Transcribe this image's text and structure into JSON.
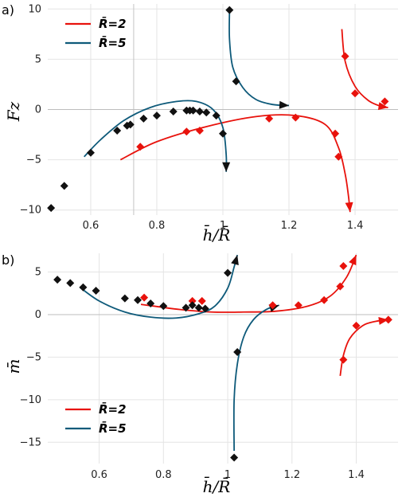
{
  "chart_data": [
    {
      "type": "scatter",
      "panel_label": "a)",
      "xlabel": "h̄/R̄",
      "ylabel": "Fz",
      "xlim": [
        0.47,
        1.53
      ],
      "ylim": [
        -10.5,
        10.5
      ],
      "x_ticks": [
        0.6,
        0.8,
        1.0,
        1.2,
        1.4
      ],
      "y_ticks": [
        -10,
        -5,
        0,
        5,
        10
      ],
      "grid": true,
      "legend_position": "top-left",
      "reference_line_x": 0.73,
      "series": [
        {
          "name": "R̄=2",
          "color": "#e8120c",
          "marker_points": [
            [
              0.75,
              -3.7
            ],
            [
              0.89,
              -2.2
            ],
            [
              0.93,
              -2.1
            ],
            [
              1.14,
              -0.9
            ],
            [
              1.22,
              -0.8
            ],
            [
              1.34,
              -2.4
            ],
            [
              1.35,
              -4.7
            ],
            [
              1.37,
              5.3
            ],
            [
              1.4,
              1.6
            ],
            [
              1.49,
              0.8
            ]
          ],
          "curves": [
            [
              [
                0.69,
                -5.0
              ],
              [
                0.8,
                -3.2
              ],
              [
                0.95,
                -1.7
              ],
              [
                1.1,
                -0.7
              ],
              [
                1.22,
                -0.6
              ],
              [
                1.31,
                -1.5
              ],
              [
                1.35,
                -3.8
              ],
              [
                1.37,
                -6.4
              ],
              [
                1.38,
                -8.6
              ],
              [
                1.385,
                -10.2
              ]
            ],
            [
              [
                1.36,
                8.0
              ],
              [
                1.37,
                4.8
              ],
              [
                1.4,
                2.3
              ],
              [
                1.44,
                0.9
              ],
              [
                1.48,
                0.3
              ],
              [
                1.5,
                0.2
              ]
            ]
          ]
        },
        {
          "name": "R̄=5",
          "color": "#0e5a7a",
          "marker_points": [
            [
              0.48,
              -9.8
            ],
            [
              0.52,
              -7.6
            ],
            [
              0.6,
              -4.3
            ],
            [
              0.68,
              -2.1
            ],
            [
              0.71,
              -1.6
            ],
            [
              0.72,
              -1.5
            ],
            [
              0.76,
              -0.9
            ],
            [
              0.8,
              -0.6
            ],
            [
              0.85,
              -0.2
            ],
            [
              0.89,
              -0.1
            ],
            [
              0.9,
              -0.1
            ],
            [
              0.91,
              -0.1
            ],
            [
              0.93,
              -0.2
            ],
            [
              0.95,
              -0.3
            ],
            [
              0.98,
              -0.6
            ],
            [
              1.0,
              -2.4
            ],
            [
              1.02,
              9.9
            ],
            [
              1.04,
              2.8
            ]
          ],
          "curves": [
            [
              [
                0.58,
                -4.7
              ],
              [
                0.63,
                -3.0
              ],
              [
                0.7,
                -1.1
              ],
              [
                0.78,
                0.2
              ],
              [
                0.86,
                0.8
              ],
              [
                0.92,
                0.8
              ],
              [
                0.97,
                0.0
              ],
              [
                1.0,
                -1.8
              ],
              [
                1.01,
                -4.5
              ],
              [
                1.01,
                -6.2
              ]
            ],
            [
              [
                1.02,
                9.8
              ],
              [
                1.02,
                7.0
              ],
              [
                1.03,
                4.2
              ],
              [
                1.06,
                2.2
              ],
              [
                1.1,
                1.0
              ],
              [
                1.15,
                0.5
              ],
              [
                1.2,
                0.4
              ]
            ]
          ]
        }
      ]
    },
    {
      "type": "scatter",
      "panel_label": "b)",
      "xlabel": "h̄/R̄",
      "ylabel": "m̄",
      "xlim": [
        0.44,
        1.53
      ],
      "ylim": [
        -17.5,
        7.2
      ],
      "x_ticks": [
        0.6,
        0.8,
        1.0,
        1.2,
        1.4
      ],
      "y_ticks": [
        -15,
        -10,
        -5,
        0,
        5
      ],
      "grid": true,
      "legend_position": "bottom-left",
      "series": [
        {
          "name": "R̄=2",
          "color": "#e8120c",
          "marker_points": [
            [
              0.74,
              2.0
            ],
            [
              0.89,
              1.6
            ],
            [
              0.92,
              1.6
            ],
            [
              1.14,
              1.1
            ],
            [
              1.22,
              1.1
            ],
            [
              1.3,
              1.7
            ],
            [
              1.35,
              3.3
            ],
            [
              1.36,
              5.7
            ],
            [
              1.36,
              -5.3
            ],
            [
              1.4,
              -1.3
            ],
            [
              1.5,
              -0.6
            ]
          ],
          "curves": [
            [
              [
                0.73,
                1.2
              ],
              [
                0.85,
                0.6
              ],
              [
                0.95,
                0.3
              ],
              [
                1.05,
                0.3
              ],
              [
                1.15,
                0.4
              ],
              [
                1.25,
                1.0
              ],
              [
                1.32,
                2.2
              ],
              [
                1.37,
                4.4
              ],
              [
                1.4,
                7.0
              ]
            ],
            [
              [
                1.35,
                -7.2
              ],
              [
                1.36,
                -4.8
              ],
              [
                1.38,
                -2.8
              ],
              [
                1.42,
                -1.3
              ],
              [
                1.46,
                -0.8
              ],
              [
                1.5,
                -0.6
              ]
            ]
          ]
        },
        {
          "name": "R̄=5",
          "color": "#0e5a7a",
          "marker_points": [
            [
              0.47,
              4.1
            ],
            [
              0.51,
              3.7
            ],
            [
              0.55,
              3.2
            ],
            [
              0.59,
              2.8
            ],
            [
              0.68,
              1.9
            ],
            [
              0.72,
              1.7
            ],
            [
              0.76,
              1.3
            ],
            [
              0.8,
              1.0
            ],
            [
              0.87,
              0.8
            ],
            [
              0.89,
              1.1
            ],
            [
              0.91,
              0.8
            ],
            [
              0.93,
              0.7
            ],
            [
              1.0,
              4.9
            ],
            [
              1.02,
              -16.8
            ],
            [
              1.03,
              -4.4
            ]
          ],
          "curves": [
            [
              [
                0.54,
                3.2
              ],
              [
                0.6,
                1.6
              ],
              [
                0.68,
                0.3
              ],
              [
                0.76,
                -0.3
              ],
              [
                0.84,
                -0.4
              ],
              [
                0.91,
                0.1
              ],
              [
                0.96,
                1.0
              ],
              [
                1.0,
                3.1
              ],
              [
                1.02,
                5.6
              ],
              [
                1.03,
                7.0
              ]
            ],
            [
              [
                1.02,
                -16.0
              ],
              [
                1.02,
                -10.0
              ],
              [
                1.03,
                -5.8
              ],
              [
                1.05,
                -2.6
              ],
              [
                1.08,
                -0.6
              ],
              [
                1.12,
                0.6
              ],
              [
                1.16,
                1.1
              ]
            ]
          ]
        }
      ]
    }
  ]
}
